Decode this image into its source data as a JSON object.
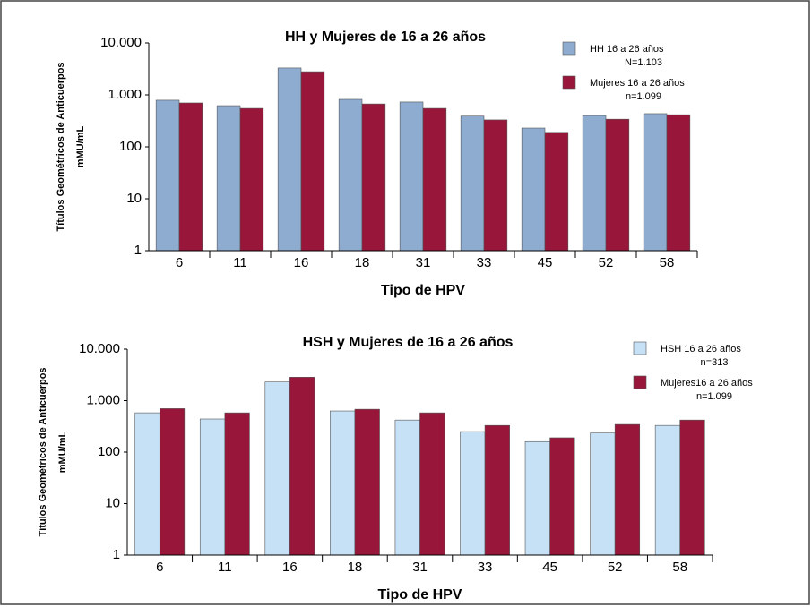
{
  "chart_data": [
    {
      "type": "bar",
      "title": "HH y Mujeres de 16 a 26 años",
      "ylabel": [
        "Títulos Geométricos de Anticuerpos",
        "mMU/mL"
      ],
      "xlabel": "Tipo de HPV",
      "categories": [
        "6",
        "11",
        "16",
        "18",
        "31",
        "33",
        "45",
        "52",
        "58"
      ],
      "series": [
        {
          "name": "HH 16 a 26 años",
          "n": "N=1.103",
          "color": "#8eabd0",
          "values": [
            790,
            620,
            3300,
            820,
            730,
            390,
            230,
            400,
            435
          ]
        },
        {
          "name": "Mujeres 16 a 26 años",
          "n": "n=1.099",
          "color": "#98163a",
          "values": [
            700,
            550,
            2800,
            670,
            550,
            330,
            190,
            340,
            415
          ]
        }
      ],
      "log_scale": true,
      "ylim": [
        1,
        10000
      ],
      "yticks": [
        1,
        10,
        100,
        {
          "value": 1000,
          "label": "1.000"
        },
        {
          "value": 10000,
          "label": "10.000"
        }
      ]
    },
    {
      "type": "bar",
      "title": "HSH y Mujeres de 16 a 26 años",
      "ylabel": [
        "Títulos Geométricos de Anticuerpos",
        "mMU/mL"
      ],
      "xlabel": "Tipo de HPV",
      "categories": [
        "6",
        "11",
        "16",
        "18",
        "31",
        "33",
        "45",
        "52",
        "58"
      ],
      "series": [
        {
          "name": "HSH 16 a 26 años",
          "n": "n=313",
          "color": "#c6e0f6",
          "values": [
            580,
            440,
            2300,
            630,
            420,
            250,
            160,
            235,
            330
          ]
        },
        {
          "name": "Mujeres16 a 26 años",
          "n": "n=1.099",
          "color": "#98163a",
          "values": [
            700,
            580,
            2850,
            680,
            580,
            330,
            190,
            345,
            420
          ]
        }
      ],
      "log_scale": true,
      "ylim": [
        1,
        10000
      ],
      "yticks": [
        1,
        10,
        100,
        {
          "value": 1000,
          "label": "1.000"
        },
        {
          "value": 10000,
          "label": "10.000"
        }
      ]
    }
  ]
}
